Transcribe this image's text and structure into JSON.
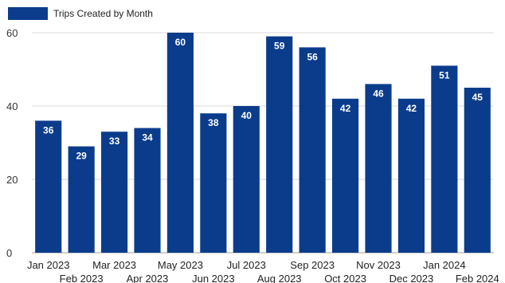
{
  "chart_data": {
    "type": "bar",
    "legend": {
      "label": "Trips Created by Month",
      "placement": "top-left"
    },
    "categories": [
      "Jan 2023",
      "Feb 2023",
      "Mar 2023",
      "Apr 2023",
      "May 2023",
      "Jun 2023",
      "Jul 2023",
      "Aug 2023",
      "Sep 2023",
      "Oct 2023",
      "Nov 2023",
      "Dec 2023",
      "Jan 2024",
      "Feb 2024"
    ],
    "series": [
      {
        "name": "Trips Created by Month",
        "values": [
          36,
          29,
          33,
          34,
          60,
          38,
          40,
          59,
          56,
          42,
          46,
          42,
          51,
          45
        ]
      }
    ],
    "yticks": [
      "0",
      "20",
      "40",
      "60"
    ],
    "ylim": [
      0,
      60
    ],
    "grid": true,
    "bar_color": "#0b3c8c",
    "data_label_color": "#ffffff"
  }
}
